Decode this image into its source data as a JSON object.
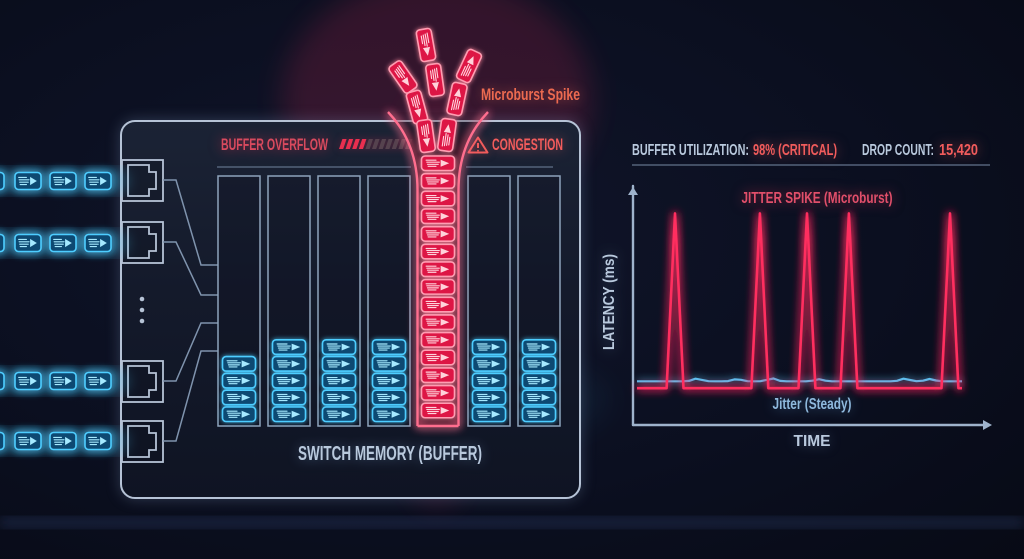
{
  "colors": {
    "background": "#0a0e1c",
    "panel_stroke": "#b6c3d6",
    "line_dim": "#7f93ad",
    "column_stroke": "#8ea3bb",
    "separator": "#54627a",
    "blue": "#4ecdff",
    "blue_fill": "#0f4a72",
    "blue_glyph": "#a5e9ff",
    "red": "#ff2d5e",
    "red_stroke": "#ff9db2",
    "red_fill": "#dd1245",
    "red_glyph": "#ffd2da",
    "hazard_lit": "#e92f4f",
    "hazard_dim": "#55424e",
    "title_red": "#d84a5e",
    "warning_red": "#f25c5c",
    "salmon": "#ec6a50",
    "label_light": "#b9c9dd",
    "crimson_text": "#e04f6a",
    "steady_label": "#8fb9dd"
  },
  "switch": {
    "header": {
      "title": "BUFFER OVERFLOW",
      "warning": "CONGESTION",
      "warning_icon": "warning-triangle-icon",
      "hazard_segments_total": 11,
      "hazard_segments_lit": 4
    },
    "memory_label": "SWITCH MEMORY (BUFFER)",
    "ports": 4,
    "ellipsis_dots": 3,
    "columns": [
      {
        "fill": 4,
        "state": "normal"
      },
      {
        "fill": 5,
        "state": "normal"
      },
      {
        "fill": 5,
        "state": "normal"
      },
      {
        "fill": 5,
        "state": "normal"
      },
      {
        "fill": 15,
        "state": "overflow"
      },
      {
        "fill": 5,
        "state": "normal"
      },
      {
        "fill": 5,
        "state": "normal"
      }
    ],
    "overflow_fan_packets": 8
  },
  "incoming_rows": [
    {
      "packets": 4
    },
    {
      "packets": 4
    },
    {
      "packets": 4
    },
    {
      "packets": 4
    }
  ],
  "microburst_label": "Microburst Spike",
  "stats": {
    "utilization_label": "BUFFER UTILIZATION:",
    "utilization_value": "98% (CRITICAL)",
    "drop_label": "DROP COUNT:",
    "drop_value": "15,420"
  },
  "chart_data": {
    "type": "line",
    "title": "JITTER SPIKE (Microburst)",
    "xlabel": "TIME",
    "ylabel": "LATENCY (ms)",
    "grid": false,
    "legend": "inline-labels",
    "y_range": [
      0,
      100
    ],
    "x_range": [
      0,
      1
    ],
    "series": [
      {
        "name": "Jitter (Steady)",
        "color": "#56c7f5",
        "baseline": 19,
        "bumps": [
          {
            "t": 0.185,
            "amp": 1.2
          },
          {
            "t": 0.308,
            "amp": 1.0
          },
          {
            "t": 0.415,
            "amp": 1.3
          },
          {
            "t": 0.56,
            "amp": 0.9
          },
          {
            "t": 0.824,
            "amp": 1.2
          },
          {
            "t": 0.901,
            "amp": 1.0
          }
        ]
      },
      {
        "name": "Microburst spikes",
        "color": "#ff2d5e",
        "baseline": 16,
        "spike_half_width_t": 0.026,
        "spikes": [
          {
            "t": 0.117,
            "peak": 92
          },
          {
            "t": 0.378,
            "peak": 92
          },
          {
            "t": 0.523,
            "peak": 92
          },
          {
            "t": 0.652,
            "peak": 92
          },
          {
            "t": 0.963,
            "peak": 92
          }
        ]
      }
    ]
  }
}
